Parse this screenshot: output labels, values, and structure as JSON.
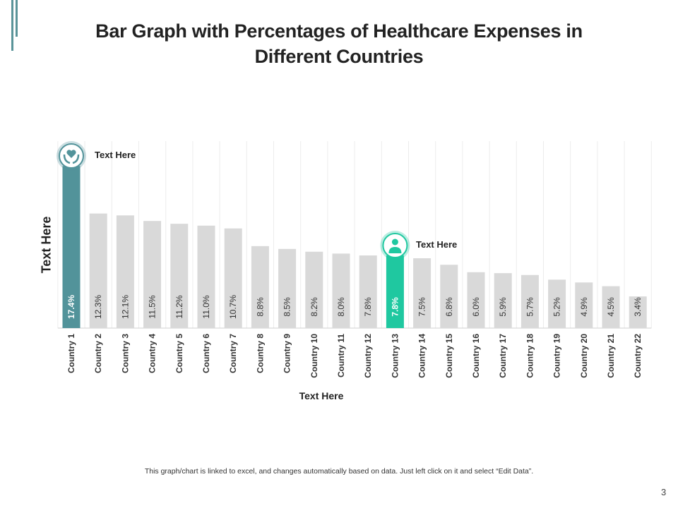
{
  "title": "Bar Graph with Percentages of Healthcare Expenses in Different Countries",
  "footnote": "This graph/chart is linked to excel, and changes automatically based on data. Just left click on it and select “Edit Data”.",
  "page_number": "3",
  "colors": {
    "highlight_primary": "#52939a",
    "highlight_secondary": "#1fc8a0",
    "default_bar": "#d9d9d9",
    "gridline": "#ececec"
  },
  "callouts": [
    {
      "label": "Text Here",
      "icon": "heart-in-hands-icon",
      "category": "Country 1"
    },
    {
      "label": "Text Here",
      "icon": "doctor-icon",
      "category": "Country 13"
    }
  ],
  "chart_data": {
    "type": "bar",
    "title": "Bar Graph with Percentages of Healthcare Expenses in Different Countries",
    "xlabel": "Text Here",
    "ylabel": "Text Here",
    "categories": [
      "Country 1",
      "Country 2",
      "Country 3",
      "Country 4",
      "Country 5",
      "Country 6",
      "Country 7",
      "Country 8",
      "Country 9",
      "Country 10",
      "Country 11",
      "Country 12",
      "Country 13",
      "Country 14",
      "Country 15",
      "Country 16",
      "Country 17",
      "Country 18",
      "Country 19",
      "Country 20",
      "Country 21",
      "Country 22"
    ],
    "values": [
      17.4,
      12.3,
      12.1,
      11.5,
      11.2,
      11.0,
      10.7,
      8.8,
      8.5,
      8.2,
      8.0,
      7.8,
      7.8,
      7.5,
      6.8,
      6.0,
      5.9,
      5.7,
      5.2,
      4.9,
      4.5,
      3.4
    ],
    "data_labels": [
      "17.4%",
      "12.3%",
      "12.1%",
      "11.5%",
      "11.2%",
      "11.0%",
      "10.7%",
      "8.8%",
      "8.5%",
      "8.2%",
      "8.0%",
      "7.8%",
      "7.8%",
      "7.5%",
      "6.8%",
      "6.0%",
      "5.9%",
      "5.7%",
      "5.2%",
      "4.9%",
      "4.5%",
      "3.4%"
    ],
    "highlighted": {
      "Country 1": "#52939a",
      "Country 13": "#1fc8a0"
    },
    "grid": "vertical",
    "ylim": [
      0,
      20
    ]
  }
}
